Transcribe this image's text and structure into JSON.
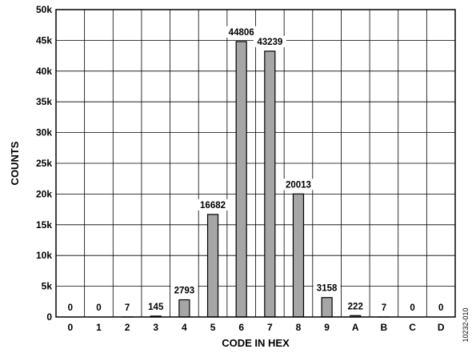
{
  "chart_data": {
    "type": "bar",
    "categories": [
      "0",
      "1",
      "2",
      "3",
      "4",
      "5",
      "6",
      "7",
      "8",
      "9",
      "A",
      "B",
      "C",
      "D"
    ],
    "values": [
      0,
      0,
      7,
      145,
      2793,
      16682,
      44806,
      43239,
      20013,
      3158,
      222,
      7,
      0,
      0
    ],
    "data_labels": [
      "0",
      "0",
      "7",
      "145",
      "2793",
      "16682",
      "44806",
      "43239",
      "20013",
      "3158",
      "222",
      "7",
      "0",
      "0"
    ],
    "xlabel": "CODE IN HEX",
    "ylabel": "COUNTS",
    "ylim": [
      0,
      50000
    ],
    "yticks": [
      0,
      5000,
      10000,
      15000,
      20000,
      25000,
      30000,
      35000,
      40000,
      45000,
      50000
    ],
    "ytick_labels": [
      "0",
      "5k",
      "10k",
      "15k",
      "20k",
      "25k",
      "30k",
      "35k",
      "40k",
      "45k",
      "50k"
    ],
    "grid": true,
    "bar_color": "#a6a6a6",
    "figure_id": "10232-010"
  }
}
